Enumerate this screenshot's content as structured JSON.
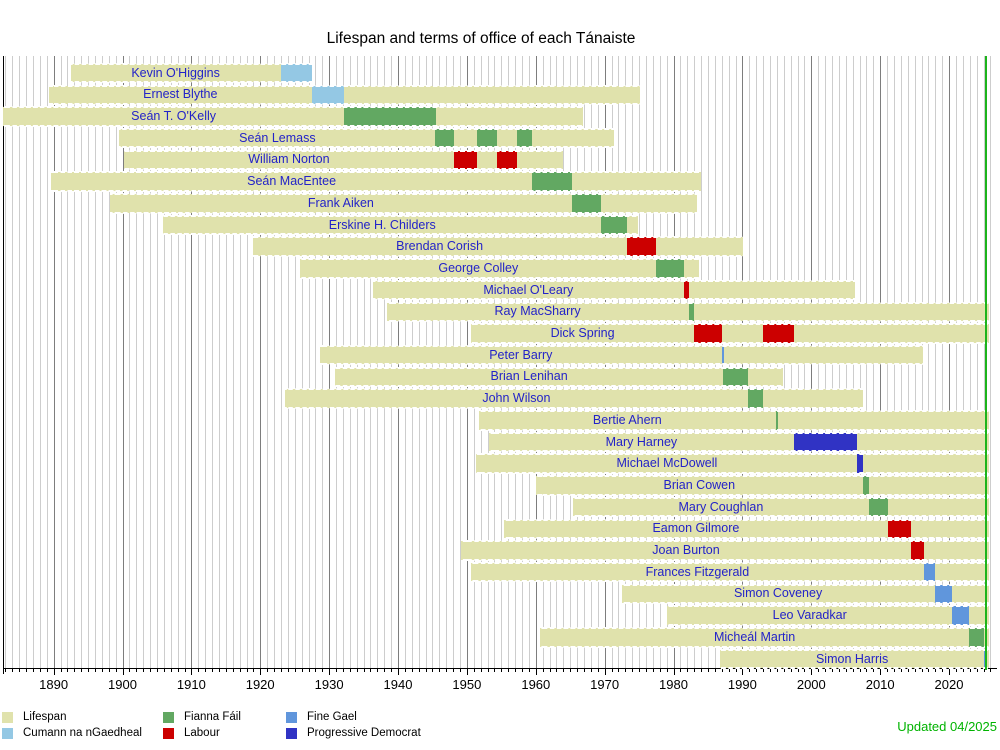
{
  "title": "Lifespan and terms of office of each Tánaiste",
  "updated_label": "Updated 04/2025",
  "colors": {
    "lifespan": "#e0e2ac",
    "cumann_na_ngaedheal": "#94c8e4",
    "fianna_fail": "#62a862",
    "labour": "#cc0000",
    "fine_gael": "#6096dc",
    "progressive_democrat": "#3033c4",
    "now_line": "#1cb41c",
    "updated_text": "#00b300",
    "name_text": "#2323c8",
    "grid_minor": "#cdcdcd",
    "grid_major": "#7d7d7d",
    "axis": "#000000"
  },
  "legend": [
    {
      "label": "Lifespan",
      "color": "#e0e2ac"
    },
    {
      "label": "Cumann na nGaedheal",
      "color": "#94c8e4"
    },
    {
      "label": "Fianna Fáil",
      "color": "#62a862"
    },
    {
      "label": "Labour",
      "color": "#cc0000"
    },
    {
      "label": "Fine Gael",
      "color": "#6096dc"
    },
    {
      "label": "Progressive Democrat",
      "color": "#3033c4"
    }
  ],
  "chart_data": {
    "type": "bar",
    "subtype": "timeline-gantt",
    "title": "Lifespan and terms of office of each Tánaiste",
    "x_axis": {
      "min": 1883,
      "max": 2026,
      "year_tick_interval": 1,
      "decade_labels": [
        "1890",
        "1900",
        "1910",
        "1920",
        "1930",
        "1940",
        "1950",
        "1960",
        "1970",
        "1980",
        "1990",
        "2000",
        "2010",
        "2020"
      ]
    },
    "now_marker_year": 2025.3,
    "living_bar_end_year": 2025.8,
    "parties": {
      "CNG": {
        "name": "Cumann na nGaedheal",
        "color": "#94c8e4"
      },
      "FF": {
        "name": "Fianna Fáil",
        "color": "#62a862"
      },
      "LAB": {
        "name": "Labour",
        "color": "#cc0000"
      },
      "FG": {
        "name": "Fine Gael",
        "color": "#6096dc"
      },
      "PD": {
        "name": "Progressive Democrat",
        "color": "#3033c4"
      }
    },
    "people": [
      {
        "name": "Kevin O'Higgins",
        "born": 1892.46,
        "died": 1927.52,
        "terms": [
          {
            "party": "CNG",
            "start": 1922.95,
            "end": 1927.52
          }
        ]
      },
      {
        "name": "Ernest Blythe",
        "born": 1889.28,
        "died": 1975.15,
        "terms": [
          {
            "party": "CNG",
            "start": 1927.52,
            "end": 1932.18
          }
        ]
      },
      {
        "name": "Seán T. O'Kelly",
        "born": 1882.65,
        "died": 1966.9,
        "terms": [
          {
            "party": "FF",
            "start": 1932.18,
            "end": 1945.45
          }
        ]
      },
      {
        "name": "Seán Lemass",
        "born": 1899.54,
        "died": 1971.36,
        "terms": [
          {
            "party": "FF",
            "start": 1945.45,
            "end": 1948.13
          },
          {
            "party": "FF",
            "start": 1951.45,
            "end": 1954.42
          },
          {
            "party": "FF",
            "start": 1957.22,
            "end": 1959.48
          }
        ]
      },
      {
        "name": "William Norton",
        "born": 1900.2,
        "died": 1963.93,
        "terms": [
          {
            "party": "LAB",
            "start": 1948.13,
            "end": 1951.45
          },
          {
            "party": "LAB",
            "start": 1954.42,
            "end": 1957.22
          }
        ]
      },
      {
        "name": "Seán MacEntee",
        "born": 1889.64,
        "died": 1984.03,
        "terms": [
          {
            "party": "FF",
            "start": 1959.48,
            "end": 1965.3
          }
        ]
      },
      {
        "name": "Frank Aiken",
        "born": 1898.12,
        "died": 1983.38,
        "terms": [
          {
            "party": "FF",
            "start": 1965.3,
            "end": 1969.5
          }
        ]
      },
      {
        "name": "Erskine H. Childers",
        "born": 1905.94,
        "died": 1974.88,
        "terms": [
          {
            "party": "FF",
            "start": 1969.5,
            "end": 1973.2
          }
        ]
      },
      {
        "name": "Brendan Corish",
        "born": 1918.88,
        "died": 1990.13,
        "terms": [
          {
            "party": "LAB",
            "start": 1973.2,
            "end": 1977.51
          }
        ]
      },
      {
        "name": "George Colley",
        "born": 1925.8,
        "died": 1983.71,
        "terms": [
          {
            "party": "FF",
            "start": 1977.51,
            "end": 1981.49
          }
        ]
      },
      {
        "name": "Michael O'Leary",
        "born": 1936.35,
        "died": 2006.36,
        "terms": [
          {
            "party": "LAB",
            "start": 1981.49,
            "end": 1982.19
          }
        ]
      },
      {
        "name": "Ray MacSharry",
        "born": 1938.33,
        "died": null,
        "terms": [
          {
            "party": "FF",
            "start": 1982.19,
            "end": 1982.95
          }
        ]
      },
      {
        "name": "Dick Spring",
        "born": 1950.66,
        "died": null,
        "terms": [
          {
            "party": "LAB",
            "start": 1982.95,
            "end": 1987.05
          },
          {
            "party": "LAB",
            "start": 1993.03,
            "end": 1997.48
          }
        ]
      },
      {
        "name": "Peter Barry",
        "born": 1928.61,
        "died": 2016.23,
        "terms": [
          {
            "party": "FG",
            "start": 1987.05,
            "end": 1987.19
          }
        ]
      },
      {
        "name": "Brian Lenihan",
        "born": 1930.88,
        "died": 1995.83,
        "terms": [
          {
            "party": "FF",
            "start": 1987.19,
            "end": 1990.83
          }
        ]
      },
      {
        "name": "John Wilson",
        "born": 1923.52,
        "died": 2007.52,
        "terms": [
          {
            "party": "FF",
            "start": 1990.87,
            "end": 1993.03
          }
        ]
      },
      {
        "name": "Bertie Ahern",
        "born": 1951.7,
        "died": null,
        "terms": [
          {
            "party": "FF",
            "start": 1994.88,
            "end": 1994.96
          }
        ]
      },
      {
        "name": "Mary Harney",
        "born": 1953.19,
        "died": null,
        "terms": [
          {
            "party": "PD",
            "start": 1997.48,
            "end": 2006.7
          }
        ]
      },
      {
        "name": "Michael McDowell",
        "born": 1951.38,
        "died": null,
        "terms": [
          {
            "party": "PD",
            "start": 2006.7,
            "end": 2007.45
          }
        ]
      },
      {
        "name": "Brian Cowen",
        "born": 1960.03,
        "died": null,
        "terms": [
          {
            "party": "FF",
            "start": 2007.45,
            "end": 2008.35
          }
        ]
      },
      {
        "name": "Mary Coughlan",
        "born": 1965.41,
        "died": null,
        "terms": [
          {
            "party": "FF",
            "start": 2008.35,
            "end": 2011.19
          }
        ]
      },
      {
        "name": "Eamon Gilmore",
        "born": 1955.31,
        "died": null,
        "terms": [
          {
            "party": "LAB",
            "start": 2011.19,
            "end": 2014.53
          }
        ]
      },
      {
        "name": "Joan Burton",
        "born": 1949.09,
        "died": null,
        "terms": [
          {
            "party": "LAB",
            "start": 2014.53,
            "end": 2016.35
          }
        ]
      },
      {
        "name": "Frances Fitzgerald",
        "born": 1950.58,
        "died": null,
        "terms": [
          {
            "party": "FG",
            "start": 2016.35,
            "end": 2017.91
          }
        ]
      },
      {
        "name": "Simon Coveney",
        "born": 1972.46,
        "died": null,
        "terms": [
          {
            "party": "FG",
            "start": 2017.91,
            "end": 2020.49
          }
        ]
      },
      {
        "name": "Leo Varadkar",
        "born": 1979.05,
        "died": null,
        "terms": [
          {
            "party": "FG",
            "start": 2020.49,
            "end": 2022.96
          }
        ]
      },
      {
        "name": "Micheál Martin",
        "born": 1960.58,
        "died": null,
        "terms": [
          {
            "party": "FF",
            "start": 2022.96,
            "end": 2025.06
          }
        ]
      },
      {
        "name": "Simon Harris",
        "born": 1986.79,
        "died": null,
        "terms": [
          {
            "party": "FG",
            "start": 2025.06,
            "end": 2025.35
          }
        ]
      }
    ]
  }
}
